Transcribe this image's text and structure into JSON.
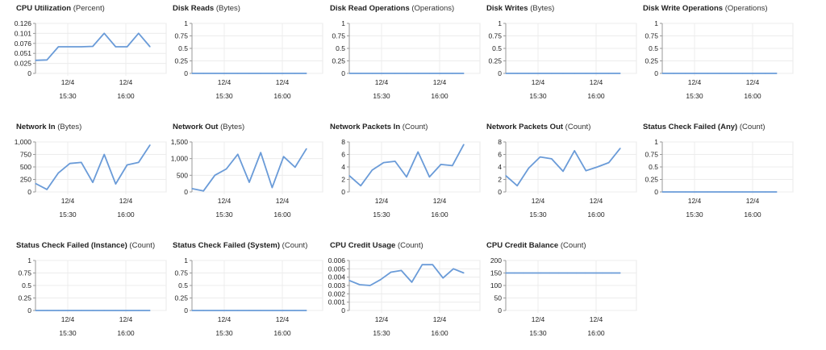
{
  "layout_note": "",
  "line_color": "#6a9bd8",
  "chart_data": [
    {
      "type": "line",
      "title": "CPU Utilization",
      "unit": "(Percent)",
      "yticks": [
        "0.126",
        "0.101",
        "0.076",
        "0.051",
        "0.025",
        "0"
      ],
      "ylim": [
        0,
        0.126
      ],
      "xticks": [
        {
          "date": "12/4",
          "time": "15:30"
        },
        {
          "date": "12/4",
          "time": "16:00"
        }
      ],
      "series": [
        {
          "values": [
            0.033,
            0.034,
            0.067,
            0.067,
            0.067,
            0.068,
            0.101,
            0.067,
            0.067,
            0.101,
            0.067
          ]
        }
      ]
    },
    {
      "type": "line",
      "title": "Disk Reads",
      "unit": "(Bytes)",
      "yticks": [
        "1",
        "0.75",
        "0.5",
        "0.25",
        "0"
      ],
      "ylim": [
        0,
        1
      ],
      "xticks": [
        {
          "date": "12/4",
          "time": "15:30"
        },
        {
          "date": "12/4",
          "time": "16:00"
        }
      ],
      "series": [
        {
          "values": [
            0,
            0,
            0,
            0,
            0,
            0,
            0,
            0,
            0,
            0,
            0
          ]
        }
      ]
    },
    {
      "type": "line",
      "title": "Disk Read Operations",
      "unit": "(Operations)",
      "yticks": [
        "1",
        "0.75",
        "0.5",
        "0.25",
        "0"
      ],
      "ylim": [
        0,
        1
      ],
      "xticks": [
        {
          "date": "12/4",
          "time": "15:30"
        },
        {
          "date": "12/4",
          "time": "16:00"
        }
      ],
      "series": [
        {
          "values": [
            0,
            0,
            0,
            0,
            0,
            0,
            0,
            0,
            0,
            0,
            0
          ]
        }
      ]
    },
    {
      "type": "line",
      "title": "Disk Writes",
      "unit": "(Bytes)",
      "yticks": [
        "1",
        "0.75",
        "0.5",
        "0.25",
        "0"
      ],
      "ylim": [
        0,
        1
      ],
      "xticks": [
        {
          "date": "12/4",
          "time": "15:30"
        },
        {
          "date": "12/4",
          "time": "16:00"
        }
      ],
      "series": [
        {
          "values": [
            0,
            0,
            0,
            0,
            0,
            0,
            0,
            0,
            0,
            0,
            0
          ]
        }
      ]
    },
    {
      "type": "line",
      "title": "Disk Write Operations",
      "unit": "(Operations)",
      "yticks": [
        "1",
        "0.75",
        "0.5",
        "0.25",
        "0"
      ],
      "ylim": [
        0,
        1
      ],
      "xticks": [
        {
          "date": "12/4",
          "time": "15:30"
        },
        {
          "date": "12/4",
          "time": "16:00"
        }
      ],
      "series": [
        {
          "values": [
            0,
            0,
            0,
            0,
            0,
            0,
            0,
            0,
            0,
            0,
            0
          ]
        }
      ]
    },
    {
      "type": "line",
      "title": "Network In",
      "unit": "(Bytes)",
      "yticks": [
        "1,000",
        "750",
        "500",
        "250",
        "0"
      ],
      "ylim": [
        0,
        1000
      ],
      "xticks": [
        {
          "date": "12/4",
          "time": "15:30"
        },
        {
          "date": "12/4",
          "time": "16:00"
        }
      ],
      "series": [
        {
          "values": [
            170,
            50,
            380,
            570,
            590,
            190,
            750,
            160,
            540,
            590,
            940
          ]
        }
      ]
    },
    {
      "type": "line",
      "title": "Network Out",
      "unit": "(Bytes)",
      "yticks": [
        "1,500",
        "1,000",
        "500",
        "0"
      ],
      "ylim": [
        0,
        1500
      ],
      "xticks": [
        {
          "date": "12/4",
          "time": "15:30"
        },
        {
          "date": "12/4",
          "time": "16:00"
        }
      ],
      "series": [
        {
          "values": [
            100,
            30,
            500,
            690,
            1130,
            290,
            1180,
            130,
            1060,
            740,
            1300
          ]
        }
      ]
    },
    {
      "type": "line",
      "title": "Network Packets In",
      "unit": "(Count)",
      "yticks": [
        "8",
        "6",
        "4",
        "2",
        "0"
      ],
      "ylim": [
        0,
        8
      ],
      "xticks": [
        {
          "date": "12/4",
          "time": "15:30"
        },
        {
          "date": "12/4",
          "time": "16:00"
        }
      ],
      "series": [
        {
          "values": [
            2.6,
            1.0,
            3.5,
            4.7,
            4.9,
            2.4,
            6.4,
            2.4,
            4.4,
            4.2,
            7.6
          ]
        }
      ]
    },
    {
      "type": "line",
      "title": "Network Packets Out",
      "unit": "(Count)",
      "yticks": [
        "8",
        "6",
        "4",
        "2",
        "0"
      ],
      "ylim": [
        0,
        8
      ],
      "xticks": [
        {
          "date": "12/4",
          "time": "15:30"
        },
        {
          "date": "12/4",
          "time": "16:00"
        }
      ],
      "series": [
        {
          "values": [
            2.6,
            1.0,
            3.8,
            5.6,
            5.3,
            3.3,
            6.6,
            3.4,
            4.0,
            4.7,
            7.0
          ]
        }
      ]
    },
    {
      "type": "line",
      "title": "Status Check Failed (Any)",
      "unit": "(Count)",
      "yticks": [
        "1",
        "0.75",
        "0.5",
        "0.25",
        "0"
      ],
      "ylim": [
        0,
        1
      ],
      "xticks": [
        {
          "date": "12/4",
          "time": "15:30"
        },
        {
          "date": "12/4",
          "time": "16:00"
        }
      ],
      "series": [
        {
          "values": [
            0,
            0,
            0,
            0,
            0,
            0,
            0,
            0,
            0,
            0,
            0
          ]
        }
      ]
    },
    {
      "type": "line",
      "title": "Status Check Failed (Instance)",
      "unit": "(Count)",
      "yticks": [
        "1",
        "0.75",
        "0.5",
        "0.25",
        "0"
      ],
      "ylim": [
        0,
        1
      ],
      "xticks": [
        {
          "date": "12/4",
          "time": "15:30"
        },
        {
          "date": "12/4",
          "time": "16:00"
        }
      ],
      "series": [
        {
          "values": [
            0,
            0,
            0,
            0,
            0,
            0,
            0,
            0,
            0,
            0,
            0
          ]
        }
      ]
    },
    {
      "type": "line",
      "title": "Status Check Failed (System)",
      "unit": "(Count)",
      "yticks": [
        "1",
        "0.75",
        "0.5",
        "0.25",
        "0"
      ],
      "ylim": [
        0,
        1
      ],
      "xticks": [
        {
          "date": "12/4",
          "time": "15:30"
        },
        {
          "date": "12/4",
          "time": "16:00"
        }
      ],
      "series": [
        {
          "values": [
            0,
            0,
            0,
            0,
            0,
            0,
            0,
            0,
            0,
            0,
            0
          ]
        }
      ]
    },
    {
      "type": "line",
      "title": "CPU Credit Usage",
      "unit": "(Count)",
      "yticks": [
        "0.006",
        "0.005",
        "0.004",
        "0.003",
        "0.002",
        "0.001",
        "0"
      ],
      "ylim": [
        0,
        0.006
      ],
      "xticks": [
        {
          "date": "12/4",
          "time": "15:30"
        },
        {
          "date": "12/4",
          "time": "16:00"
        }
      ],
      "series": [
        {
          "values": [
            0.0036,
            0.0031,
            0.003,
            0.0037,
            0.0046,
            0.0048,
            0.0034,
            0.0055,
            0.0055,
            0.0039,
            0.005,
            0.0045
          ]
        }
      ]
    },
    {
      "type": "line",
      "title": "CPU Credit Balance",
      "unit": "(Count)",
      "yticks": [
        "200",
        "150",
        "100",
        "50",
        "0"
      ],
      "ylim": [
        0,
        200
      ],
      "xticks": [
        {
          "date": "12/4",
          "time": "15:30"
        },
        {
          "date": "12/4",
          "time": "16:00"
        }
      ],
      "series": [
        {
          "values": [
            150,
            150,
            150,
            150,
            150,
            150,
            150,
            150,
            150,
            150,
            150,
            150,
            150,
            150
          ]
        }
      ]
    }
  ]
}
